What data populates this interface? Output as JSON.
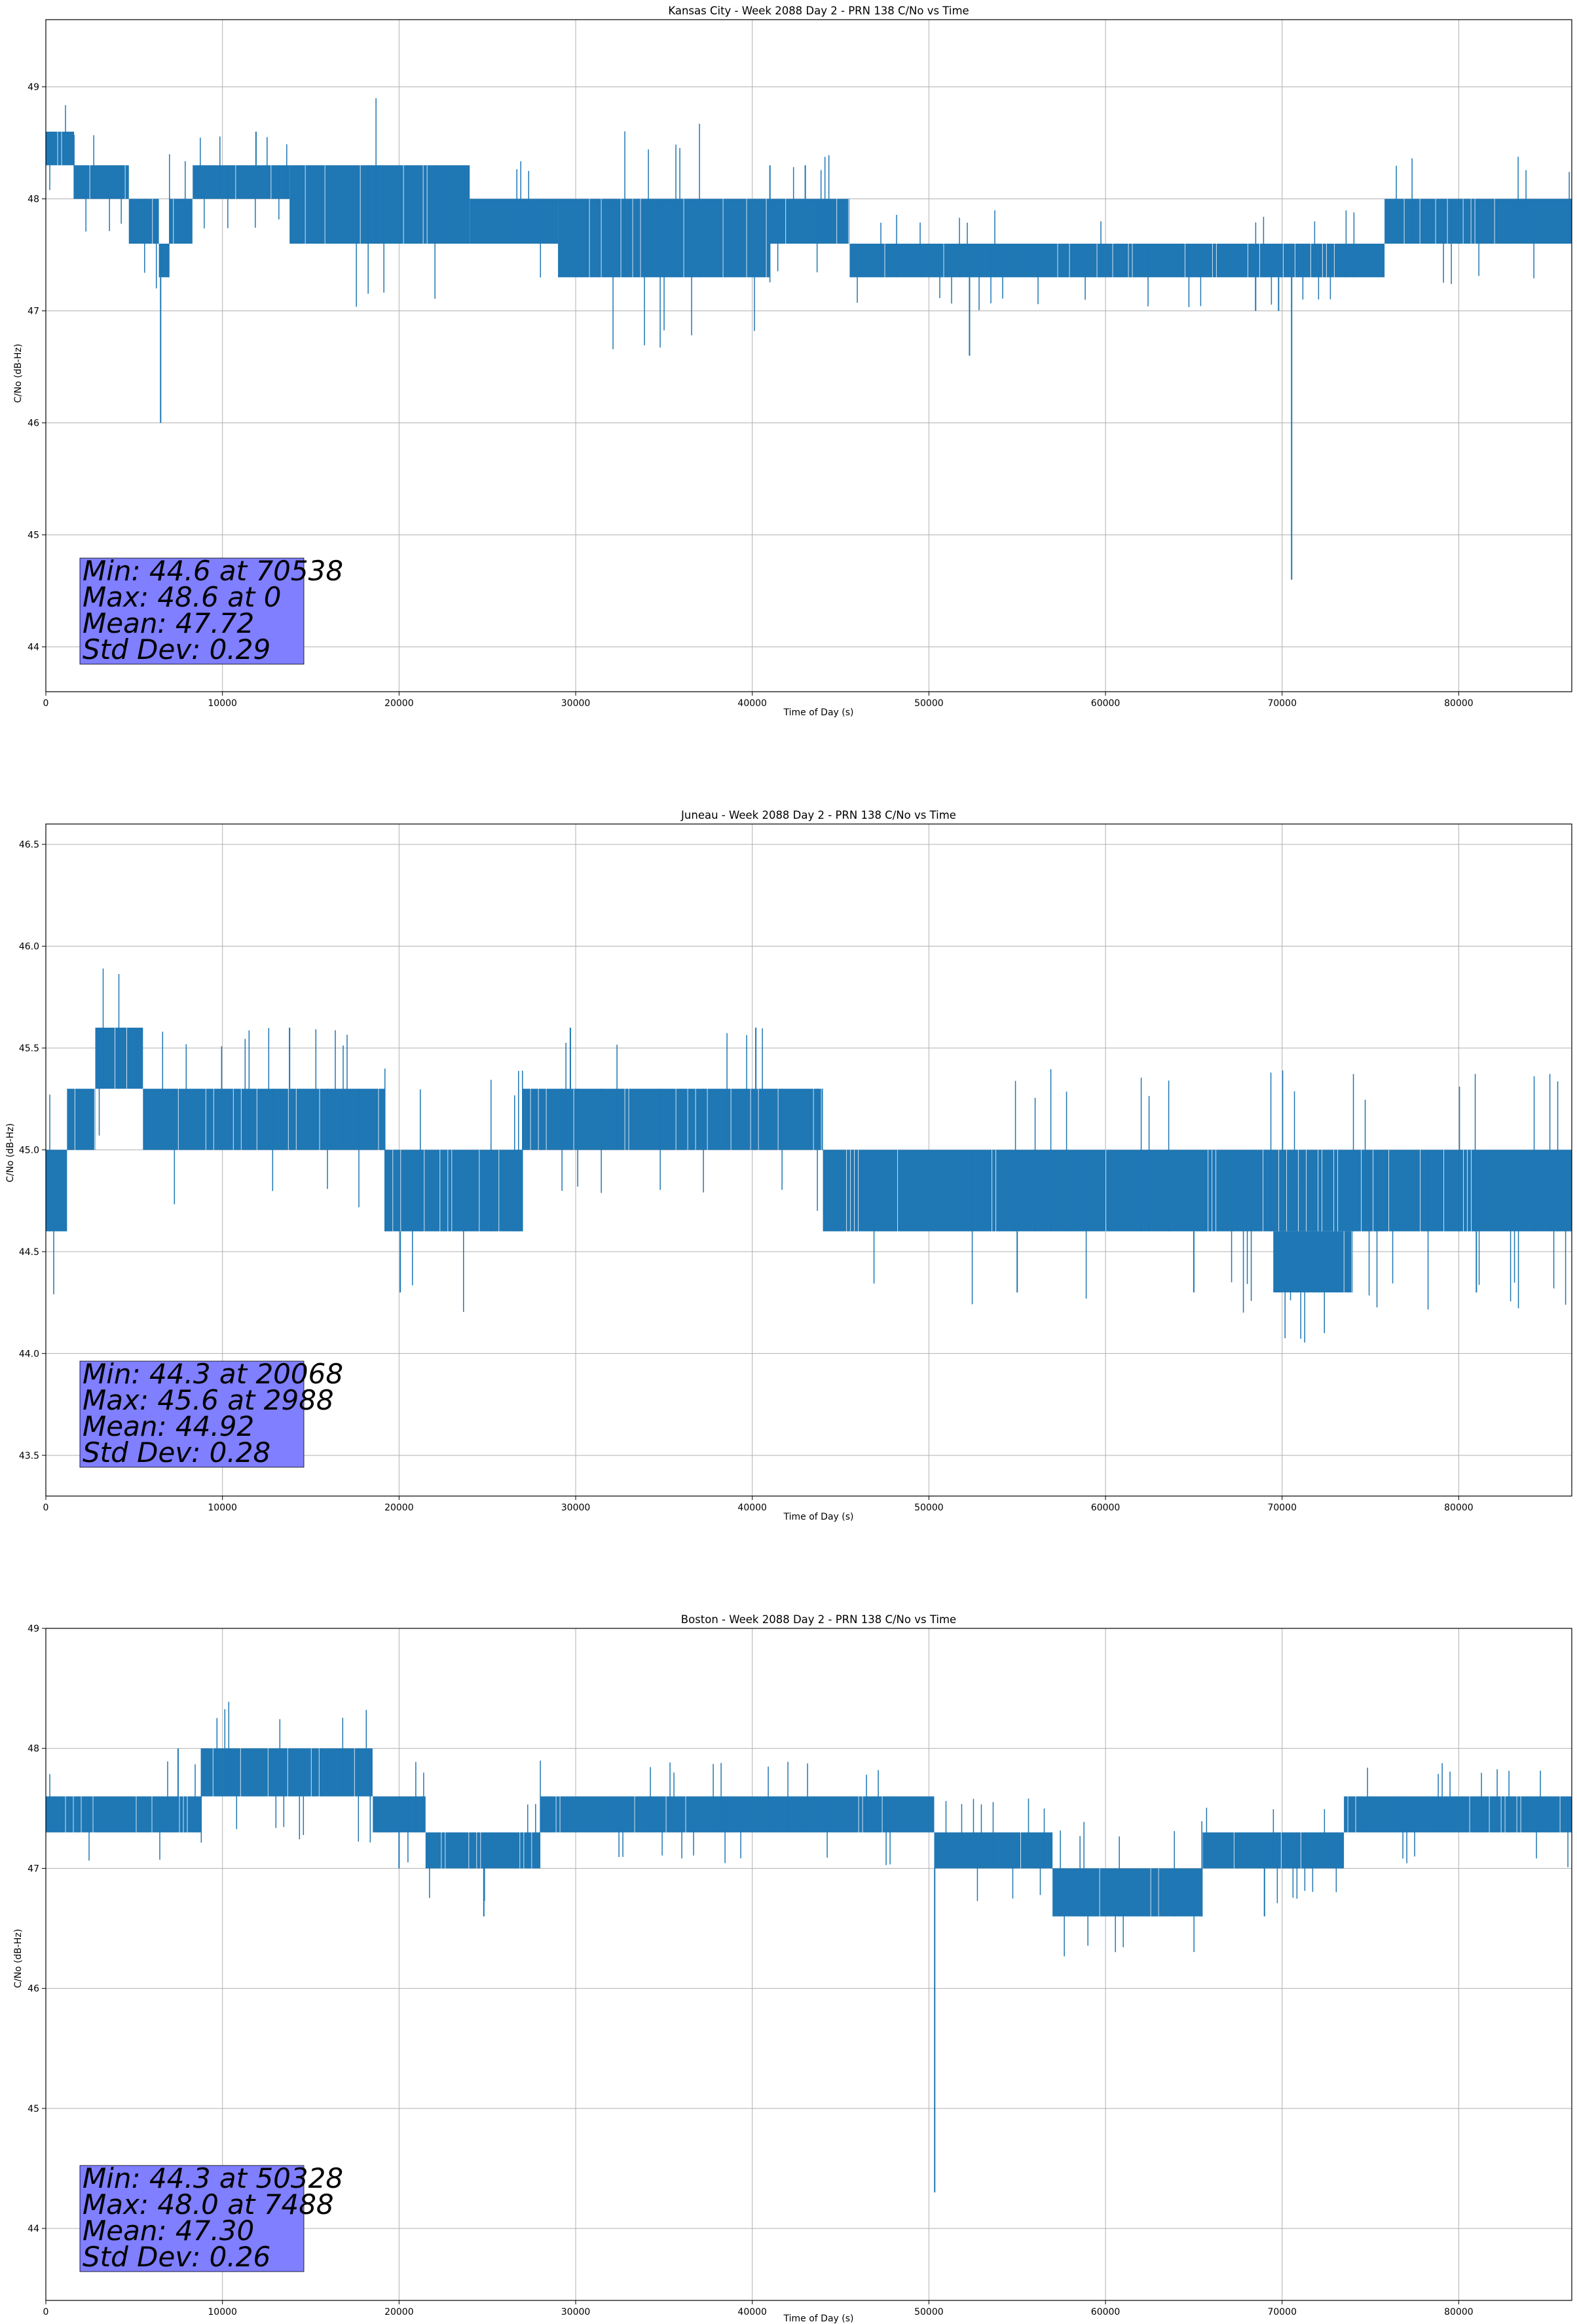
{
  "chart_data": [
    {
      "type": "line",
      "title": "Kansas City - Week 2088 Day 2 - PRN 138 C/No vs Time",
      "xlabel": "Time of Day (s)",
      "ylabel": "C/No (dB-Hz)",
      "xlim": [
        0,
        86400
      ],
      "ylim": [
        43.6,
        49.6
      ],
      "xticks": [
        0,
        10000,
        20000,
        30000,
        40000,
        50000,
        60000,
        70000,
        80000
      ],
      "yticks": [
        44,
        45,
        46,
        47,
        48,
        49
      ],
      "grid": true,
      "color": "#1f77b4",
      "stats": [
        "Min: 44.6 at 70538",
        "Max: 48.6 at 0",
        "Mean: 47.72",
        "Std Dev: 0.29"
      ],
      "bands": [
        {
          "x": [
            0,
            1600
          ],
          "y": [
            48.3,
            48.6
          ]
        },
        {
          "x": [
            1600,
            4700
          ],
          "y": [
            48.0,
            48.3
          ]
        },
        {
          "x": [
            4700,
            6400
          ],
          "y": [
            47.6,
            48.0
          ]
        },
        {
          "x": [
            6400,
            7000
          ],
          "y": [
            47.3,
            47.6
          ]
        },
        {
          "x": [
            7000,
            8300
          ],
          "y": [
            47.6,
            48.0
          ]
        },
        {
          "x": [
            8300,
            13800
          ],
          "y": [
            48.0,
            48.3
          ]
        },
        {
          "x": [
            13800,
            24000
          ],
          "y": [
            47.6,
            48.3
          ]
        },
        {
          "x": [
            24000,
            29000
          ],
          "y": [
            47.6,
            48.0
          ]
        },
        {
          "x": [
            29000,
            41000
          ],
          "y": [
            47.3,
            48.0
          ]
        },
        {
          "x": [
            41000,
            45500
          ],
          "y": [
            47.6,
            48.0
          ]
        },
        {
          "x": [
            45500,
            64500
          ],
          "y": [
            47.3,
            47.6
          ]
        },
        {
          "x": [
            64500,
            75800
          ],
          "y": [
            47.3,
            47.6
          ]
        },
        {
          "x": [
            75800,
            86400
          ],
          "y": [
            47.6,
            48.0
          ]
        }
      ],
      "spikes": [
        {
          "x": 6500,
          "y": 46.0
        },
        {
          "x": 11900,
          "y": 48.6
        },
        {
          "x": 52300,
          "y": 46.6
        },
        {
          "x": 70538,
          "y": 44.6
        },
        {
          "x": 68500,
          "y": 47.0
        },
        {
          "x": 69800,
          "y": 47.0
        },
        {
          "x": 41000,
          "y": 48.3
        },
        {
          "x": 43000,
          "y": 48.3
        }
      ]
    },
    {
      "type": "line",
      "title": "Juneau - Week 2088 Day 2 - PRN 138 C/No vs Time",
      "xlabel": "Time of Day (s)",
      "ylabel": "C/No (dB-Hz)",
      "xlim": [
        0,
        86400
      ],
      "ylim": [
        43.3,
        46.6
      ],
      "xticks": [
        0,
        10000,
        20000,
        30000,
        40000,
        50000,
        60000,
        70000,
        80000
      ],
      "yticks": [
        43.5,
        44.0,
        44.5,
        45.0,
        45.5,
        46.0,
        46.5
      ],
      "grid": true,
      "color": "#1f77b4",
      "stats": [
        "Min: 44.3 at 20068",
        "Max: 45.6 at 2988",
        "Mean: 44.92",
        "Std Dev: 0.28"
      ],
      "bands": [
        {
          "x": [
            0,
            1200
          ],
          "y": [
            44.6,
            45.0
          ]
        },
        {
          "x": [
            1200,
            2800
          ],
          "y": [
            45.0,
            45.3
          ]
        },
        {
          "x": [
            2800,
            5500
          ],
          "y": [
            45.3,
            45.6
          ]
        },
        {
          "x": [
            5500,
            15500
          ],
          "y": [
            45.0,
            45.3
          ]
        },
        {
          "x": [
            15500,
            19200
          ],
          "y": [
            45.0,
            45.3
          ]
        },
        {
          "x": [
            19200,
            27000
          ],
          "y": [
            44.6,
            45.0
          ]
        },
        {
          "x": [
            27000,
            44000
          ],
          "y": [
            45.0,
            45.3
          ]
        },
        {
          "x": [
            44000,
            86400
          ],
          "y": [
            44.6,
            45.0
          ]
        },
        {
          "x": [
            69500,
            74000
          ],
          "y": [
            44.3,
            44.6
          ]
        }
      ],
      "spikes": [
        {
          "x": 2988,
          "y": 45.6
        },
        {
          "x": 20068,
          "y": 44.3
        },
        {
          "x": 29700,
          "y": 45.6
        },
        {
          "x": 40200,
          "y": 45.6
        },
        {
          "x": 13800,
          "y": 45.6
        },
        {
          "x": 55000,
          "y": 44.3
        },
        {
          "x": 65000,
          "y": 44.3
        },
        {
          "x": 81000,
          "y": 44.3
        }
      ]
    },
    {
      "type": "line",
      "title": "Boston - Week 2088 Day 2 - PRN 138 C/No vs Time",
      "xlabel": "Time of Day (s)",
      "ylabel": "C/No (dB-Hz)",
      "xlim": [
        0,
        86400
      ],
      "ylim": [
        43.4,
        49.0
      ],
      "xticks": [
        0,
        10000,
        20000,
        30000,
        40000,
        50000,
        60000,
        70000,
        80000
      ],
      "yticks": [
        44,
        45,
        46,
        47,
        48,
        49
      ],
      "grid": true,
      "color": "#1f77b4",
      "stats": [
        "Min: 44.3 at 50328",
        "Max: 48.0 at 7488",
        "Mean: 47.30",
        "Std Dev: 0.26"
      ],
      "bands": [
        {
          "x": [
            0,
            8800
          ],
          "y": [
            47.3,
            47.6
          ]
        },
        {
          "x": [
            8800,
            18500
          ],
          "y": [
            47.6,
            48.0
          ]
        },
        {
          "x": [
            18500,
            21500
          ],
          "y": [
            47.3,
            47.6
          ]
        },
        {
          "x": [
            21500,
            28000
          ],
          "y": [
            47.0,
            47.3
          ]
        },
        {
          "x": [
            28000,
            50300
          ],
          "y": [
            47.3,
            47.6
          ]
        },
        {
          "x": [
            50300,
            57000
          ],
          "y": [
            47.0,
            47.3
          ]
        },
        {
          "x": [
            57000,
            65500
          ],
          "y": [
            46.6,
            47.0
          ]
        },
        {
          "x": [
            65500,
            73500
          ],
          "y": [
            47.0,
            47.3
          ]
        },
        {
          "x": [
            73500,
            86400
          ],
          "y": [
            47.3,
            47.6
          ]
        }
      ],
      "spikes": [
        {
          "x": 7488,
          "y": 48.0
        },
        {
          "x": 24800,
          "y": 46.6
        },
        {
          "x": 50328,
          "y": 44.3
        },
        {
          "x": 69000,
          "y": 46.6
        },
        {
          "x": 20000,
          "y": 47.0
        }
      ]
    }
  ]
}
